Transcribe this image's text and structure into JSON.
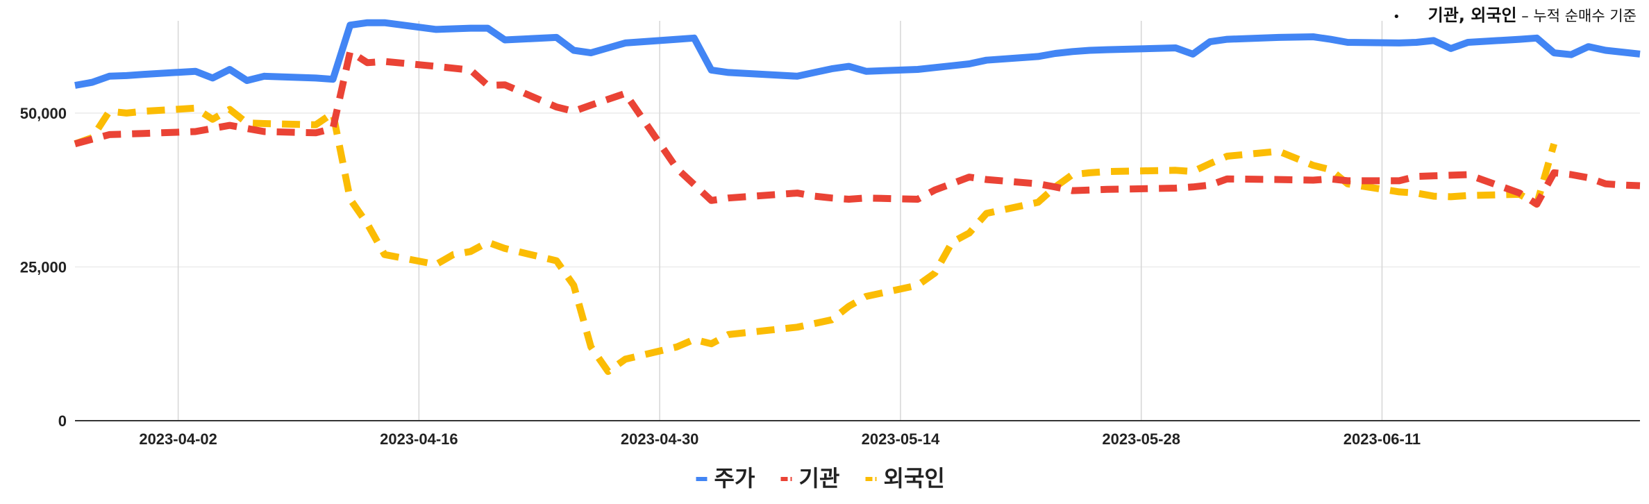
{
  "note": {
    "bullet": "•",
    "main": "기관, 외국인",
    "separator": " – ",
    "sub": "누적 순매수 기준"
  },
  "chart_data": {
    "type": "line",
    "title": "",
    "xlabel": "",
    "ylabel": "",
    "x_start": "2023-03-27",
    "x_end": "2023-06-26",
    "x_ticks": [
      "2023-04-02",
      "2023-04-16",
      "2023-04-30",
      "2023-05-14",
      "2023-05-28",
      "2023-06-11"
    ],
    "y_ticks": [
      0,
      25000,
      50000
    ],
    "y_tick_labels": [
      "0",
      "25,000",
      "50,000"
    ],
    "ylim": [
      0,
      65000
    ],
    "grid": true,
    "legend_position": "bottom",
    "series": [
      {
        "name": "주가",
        "color": "#4285F4",
        "style": "solid",
        "points": [
          [
            "2023-03-27",
            54500
          ],
          [
            "2023-03-28",
            55000
          ],
          [
            "2023-03-29",
            56000
          ],
          [
            "2023-03-30",
            56100
          ],
          [
            "2023-03-31",
            56300
          ],
          [
            "2023-04-03",
            56800
          ],
          [
            "2023-04-04",
            55700
          ],
          [
            "2023-04-05",
            57100
          ],
          [
            "2023-04-06",
            55300
          ],
          [
            "2023-04-07",
            56000
          ],
          [
            "2023-04-10",
            55700
          ],
          [
            "2023-04-11",
            55500
          ],
          [
            "2023-04-12",
            64300
          ],
          [
            "2023-04-13",
            64700
          ],
          [
            "2023-04-14",
            64700
          ],
          [
            "2023-04-17",
            63600
          ],
          [
            "2023-04-18",
            63700
          ],
          [
            "2023-04-19",
            63800
          ],
          [
            "2023-04-20",
            63800
          ],
          [
            "2023-04-21",
            61900
          ],
          [
            "2023-04-24",
            62300
          ],
          [
            "2023-04-25",
            60200
          ],
          [
            "2023-04-26",
            59800
          ],
          [
            "2023-04-27",
            60600
          ],
          [
            "2023-04-28",
            61400
          ],
          [
            "2023-05-01",
            62000
          ],
          [
            "2023-05-02",
            62200
          ],
          [
            "2023-05-03",
            57000
          ],
          [
            "2023-05-04",
            56600
          ],
          [
            "2023-05-08",
            56000
          ],
          [
            "2023-05-09",
            56600
          ],
          [
            "2023-05-10",
            57200
          ],
          [
            "2023-05-11",
            57600
          ],
          [
            "2023-05-12",
            56800
          ],
          [
            "2023-05-15",
            57100
          ],
          [
            "2023-05-16",
            57400
          ],
          [
            "2023-05-17",
            57700
          ],
          [
            "2023-05-18",
            58000
          ],
          [
            "2023-05-19",
            58600
          ],
          [
            "2023-05-22",
            59200
          ],
          [
            "2023-05-23",
            59700
          ],
          [
            "2023-05-24",
            60000
          ],
          [
            "2023-05-25",
            60200
          ],
          [
            "2023-05-26",
            60300
          ],
          [
            "2023-05-30",
            60600
          ],
          [
            "2023-05-31",
            59600
          ],
          [
            "2023-06-01",
            61600
          ],
          [
            "2023-06-02",
            62000
          ],
          [
            "2023-06-05",
            62300
          ],
          [
            "2023-06-07",
            62400
          ],
          [
            "2023-06-08",
            62000
          ],
          [
            "2023-06-09",
            61500
          ],
          [
            "2023-06-12",
            61400
          ],
          [
            "2023-06-13",
            61500
          ],
          [
            "2023-06-14",
            61800
          ],
          [
            "2023-06-15",
            60500
          ],
          [
            "2023-06-16",
            61500
          ],
          [
            "2023-06-19",
            62000
          ],
          [
            "2023-06-20",
            62200
          ],
          [
            "2023-06-21",
            59800
          ],
          [
            "2023-06-22",
            59500
          ],
          [
            "2023-06-23",
            60800
          ],
          [
            "2023-06-24",
            60200
          ],
          [
            "2023-06-26",
            59600
          ]
        ]
      },
      {
        "name": "기관",
        "color": "#EA4335",
        "style": "dashed",
        "points": [
          [
            "2023-03-27",
            45000
          ],
          [
            "2023-03-29",
            46500
          ],
          [
            "2023-03-31",
            46700
          ],
          [
            "2023-04-03",
            47000
          ],
          [
            "2023-04-05",
            48000
          ],
          [
            "2023-04-07",
            47000
          ],
          [
            "2023-04-10",
            46800
          ],
          [
            "2023-04-11",
            47500
          ],
          [
            "2023-04-12",
            60000
          ],
          [
            "2023-04-13",
            58200
          ],
          [
            "2023-04-14",
            58400
          ],
          [
            "2023-04-17",
            57600
          ],
          [
            "2023-04-19",
            57000
          ],
          [
            "2023-04-20",
            54500
          ],
          [
            "2023-04-21",
            54600
          ],
          [
            "2023-04-24",
            51000
          ],
          [
            "2023-04-25",
            50300
          ],
          [
            "2023-04-26",
            51300
          ],
          [
            "2023-04-28",
            53200
          ],
          [
            "2023-05-01",
            41000
          ],
          [
            "2023-05-03",
            35800
          ],
          [
            "2023-05-04",
            36200
          ],
          [
            "2023-05-08",
            37000
          ],
          [
            "2023-05-09",
            36500
          ],
          [
            "2023-05-10",
            36200
          ],
          [
            "2023-05-11",
            36000
          ],
          [
            "2023-05-12",
            36200
          ],
          [
            "2023-05-15",
            36000
          ],
          [
            "2023-05-16",
            37500
          ],
          [
            "2023-05-18",
            39600
          ],
          [
            "2023-05-19",
            39200
          ],
          [
            "2023-05-22",
            38500
          ],
          [
            "2023-05-23",
            38000
          ],
          [
            "2023-05-24",
            37400
          ],
          [
            "2023-05-25",
            37500
          ],
          [
            "2023-05-26",
            37600
          ],
          [
            "2023-05-30",
            37800
          ],
          [
            "2023-05-31",
            38000
          ],
          [
            "2023-06-01",
            38300
          ],
          [
            "2023-06-02",
            39300
          ],
          [
            "2023-06-05",
            39200
          ],
          [
            "2023-06-07",
            39100
          ],
          [
            "2023-06-08",
            39300
          ],
          [
            "2023-06-09",
            39000
          ],
          [
            "2023-06-12",
            39000
          ],
          [
            "2023-06-13",
            39700
          ],
          [
            "2023-06-14",
            39800
          ],
          [
            "2023-06-15",
            39900
          ],
          [
            "2023-06-16",
            40000
          ],
          [
            "2023-06-19",
            37000
          ],
          [
            "2023-06-20",
            35200
          ],
          [
            "2023-06-21",
            40300
          ],
          [
            "2023-06-22",
            40000
          ],
          [
            "2023-06-23",
            39500
          ],
          [
            "2023-06-24",
            38500
          ],
          [
            "2023-06-25",
            38300
          ],
          [
            "2023-06-26",
            38200
          ]
        ]
      },
      {
        "name": "외국인",
        "color": "#FBBC04",
        "style": "dashed",
        "points": [
          [
            "2023-03-27",
            45000
          ],
          [
            "2023-03-28",
            46000
          ],
          [
            "2023-03-29",
            50300
          ],
          [
            "2023-03-30",
            50000
          ],
          [
            "2023-03-31",
            50300
          ],
          [
            "2023-04-03",
            50800
          ],
          [
            "2023-04-04",
            49000
          ],
          [
            "2023-04-05",
            50600
          ],
          [
            "2023-04-06",
            48400
          ],
          [
            "2023-04-07",
            48300
          ],
          [
            "2023-04-10",
            48100
          ],
          [
            "2023-04-11",
            50000
          ],
          [
            "2023-04-12",
            36000
          ],
          [
            "2023-04-13",
            32000
          ],
          [
            "2023-04-14",
            27000
          ],
          [
            "2023-04-17",
            25400
          ],
          [
            "2023-04-18",
            27000
          ],
          [
            "2023-04-19",
            27500
          ],
          [
            "2023-04-20",
            29000
          ],
          [
            "2023-04-21",
            28000
          ],
          [
            "2023-04-24",
            26000
          ],
          [
            "2023-04-25",
            22000
          ],
          [
            "2023-04-26",
            12000
          ],
          [
            "2023-04-27",
            8000
          ],
          [
            "2023-04-28",
            10000
          ],
          [
            "2023-05-01",
            12000
          ],
          [
            "2023-05-02",
            13200
          ],
          [
            "2023-05-03",
            12500
          ],
          [
            "2023-05-04",
            14000
          ],
          [
            "2023-05-08",
            15200
          ],
          [
            "2023-05-09",
            15800
          ],
          [
            "2023-05-10",
            16400
          ],
          [
            "2023-05-11",
            18600
          ],
          [
            "2023-05-12",
            20200
          ],
          [
            "2023-05-15",
            22000
          ],
          [
            "2023-05-16",
            24000
          ],
          [
            "2023-05-17",
            29000
          ],
          [
            "2023-05-18",
            30500
          ],
          [
            "2023-05-19",
            33700
          ],
          [
            "2023-05-22",
            35500
          ],
          [
            "2023-05-23",
            38000
          ],
          [
            "2023-05-24",
            40000
          ],
          [
            "2023-05-25",
            40300
          ],
          [
            "2023-05-26",
            40500
          ],
          [
            "2023-05-30",
            40700
          ],
          [
            "2023-05-31",
            40500
          ],
          [
            "2023-06-01",
            41800
          ],
          [
            "2023-06-02",
            43000
          ],
          [
            "2023-06-05",
            43800
          ],
          [
            "2023-06-07",
            41500
          ],
          [
            "2023-06-08",
            40800
          ],
          [
            "2023-06-09",
            38500
          ],
          [
            "2023-06-12",
            37200
          ],
          [
            "2023-06-13",
            37000
          ],
          [
            "2023-06-14",
            36500
          ],
          [
            "2023-06-15",
            36400
          ],
          [
            "2023-06-16",
            36600
          ],
          [
            "2023-06-19",
            36800
          ],
          [
            "2023-06-20",
            35200
          ],
          [
            "2023-06-21",
            45000
          ]
        ]
      }
    ]
  }
}
